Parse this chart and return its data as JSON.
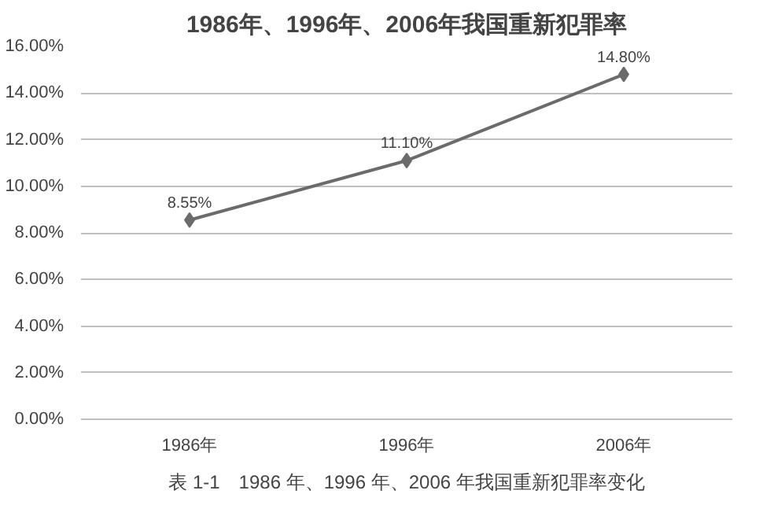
{
  "chart_data": {
    "type": "line",
    "title": "1986年、1996年、2006年我国重新犯罪率",
    "categories": [
      "1986年",
      "1996年",
      "2006年"
    ],
    "series": [
      {
        "color": "#6b6b6b",
        "values": [
          8.55,
          11.1,
          14.8
        ],
        "value_labels": [
          "8.55%",
          "11.10%",
          "14.80%"
        ]
      }
    ],
    "ylim": [
      0,
      16
    ],
    "yticks": [
      {
        "value": 0,
        "label": "0.00%"
      },
      {
        "value": 2,
        "label": "2.00%"
      },
      {
        "value": 4,
        "label": "4.00%"
      },
      {
        "value": 6,
        "label": "6.00%"
      },
      {
        "value": 8,
        "label": "8.00%"
      },
      {
        "value": 10,
        "label": "10.00%"
      },
      {
        "value": 12,
        "label": "12.00%"
      },
      {
        "value": 14,
        "label": "14.00%"
      },
      {
        "value": 16,
        "label": "16.00%"
      }
    ],
    "grid": "y",
    "marker": "diamond",
    "line_style": "solid",
    "annotations": [
      "表 1-1　1986 年、1996 年、2006 年我国重新犯罪率变化"
    ]
  }
}
